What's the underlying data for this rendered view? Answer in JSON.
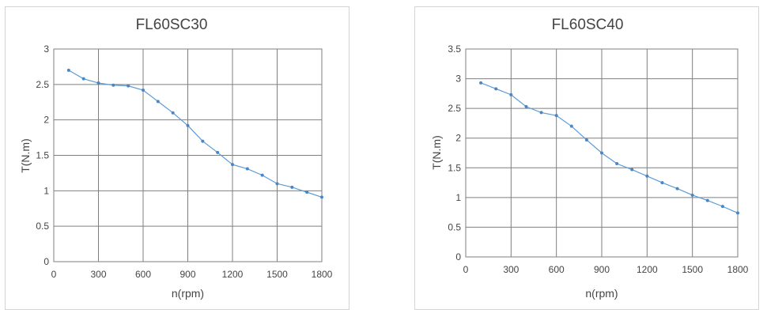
{
  "chart_data": [
    {
      "type": "line",
      "title": "FL60SC30",
      "xlabel": "n(rpm)",
      "ylabel": "T(N.m)",
      "xlim": [
        0,
        1800
      ],
      "ylim": [
        0,
        3
      ],
      "xticks": [
        0,
        300,
        600,
        900,
        1200,
        1500,
        1800
      ],
      "xtick_labels": [
        "0",
        "300",
        "600",
        "900",
        "1200",
        "1500",
        "1800"
      ],
      "yticks": [
        0,
        0.5,
        1,
        1.5,
        2,
        2.5,
        3
      ],
      "ytick_labels": [
        "0",
        "0.5",
        "1",
        "1.5",
        "2",
        "2.5",
        "3"
      ],
      "grid": true,
      "series": [
        {
          "color": "#5b9bd5",
          "x": [
            100,
            200,
            300,
            400,
            500,
            600,
            700,
            800,
            900,
            1000,
            1100,
            1200,
            1300,
            1400,
            1500,
            1600,
            1700,
            1800
          ],
          "y": [
            2.7,
            2.58,
            2.52,
            2.49,
            2.48,
            2.42,
            2.26,
            2.1,
            1.92,
            1.7,
            1.54,
            1.37,
            1.31,
            1.22,
            1.1,
            1.05,
            0.98,
            0.91
          ]
        }
      ]
    },
    {
      "type": "line",
      "title": "FL60SC40",
      "xlabel": "n(rpm)",
      "ylabel": "T(N.m)",
      "xlim": [
        0,
        1800
      ],
      "ylim": [
        0,
        3.5
      ],
      "xticks": [
        0,
        300,
        600,
        900,
        1200,
        1500,
        1800
      ],
      "xtick_labels": [
        "0",
        "300",
        "600",
        "900",
        "1200",
        "1500",
        "1800"
      ],
      "yticks": [
        0,
        0.5,
        1,
        1.5,
        2,
        2.5,
        3,
        3.5
      ],
      "ytick_labels": [
        "0",
        "0.5",
        "1",
        "1.5",
        "2",
        "2.5",
        "3",
        "3.5"
      ],
      "grid": true,
      "series": [
        {
          "color": "#5b9bd5",
          "x": [
            100,
            200,
            300,
            400,
            500,
            600,
            700,
            800,
            900,
            1000,
            1100,
            1200,
            1300,
            1400,
            1500,
            1600,
            1700,
            1800
          ],
          "y": [
            2.93,
            2.83,
            2.73,
            2.53,
            2.43,
            2.38,
            2.2,
            1.97,
            1.75,
            1.57,
            1.47,
            1.36,
            1.25,
            1.15,
            1.04,
            0.95,
            0.85,
            0.74
          ]
        }
      ]
    }
  ]
}
